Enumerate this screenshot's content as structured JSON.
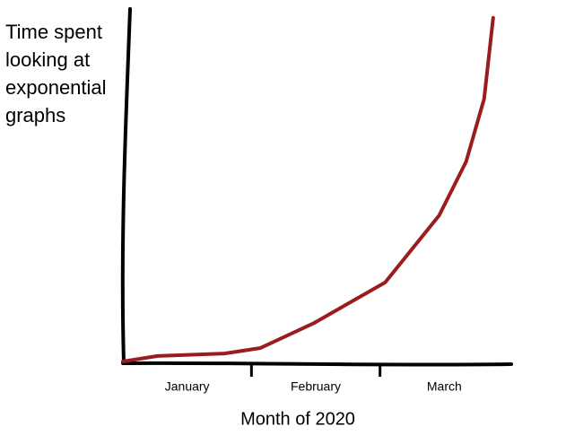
{
  "chart_data": {
    "type": "line",
    "ylabel": "Time spent looking at exponential graphs",
    "xlabel": "Month of 2020",
    "categories": [
      "January",
      "February",
      "March"
    ],
    "xlim": [
      0,
      3
    ],
    "xticks": [
      1,
      2
    ],
    "ylim": [
      0,
      100
    ],
    "series": [
      {
        "color": "#9b1c1c",
        "x": [
          0,
          0.27,
          0.79,
          1.07,
          1.49,
          2.04,
          2.46,
          2.67,
          2.81,
          2.88
        ],
        "values": [
          0,
          1.6,
          2.3,
          3.9,
          11.2,
          22.9,
          42.3,
          57.9,
          76.1,
          99.5
        ]
      }
    ]
  }
}
